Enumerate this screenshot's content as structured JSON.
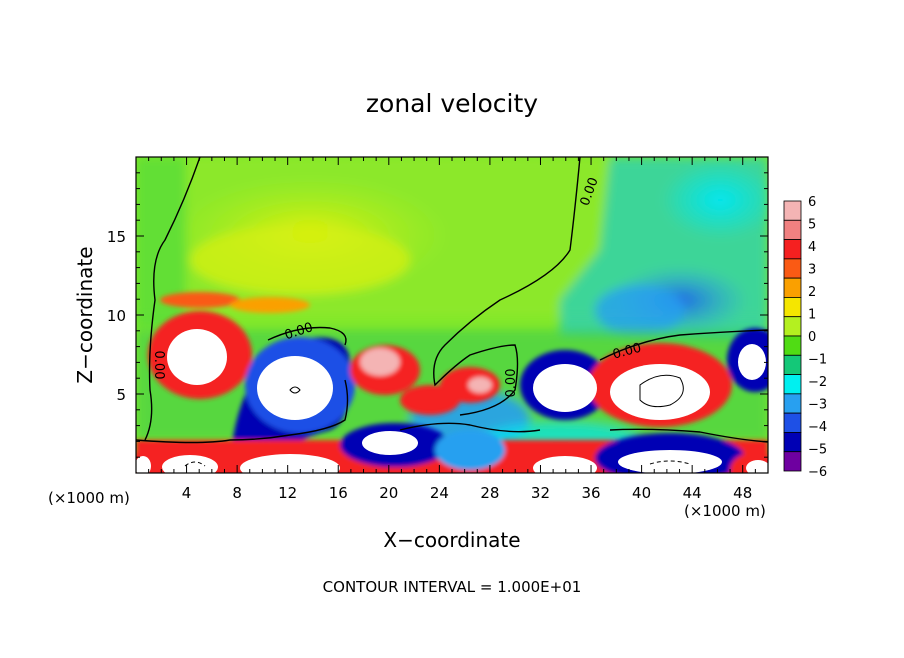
{
  "chart_data": {
    "type": "heatmap",
    "title": "zonal velocity",
    "xlabel": "X−coordinate",
    "ylabel": "Z−coordinate",
    "x_unit_left": "(×1000 m)",
    "x_unit_right": "(×1000 m)",
    "footer": "CONTOUR INTERVAL = 1.000E+01",
    "xlim": [
      0,
      50
    ],
    "ylim": [
      0,
      20
    ],
    "x_ticks": [
      4,
      8,
      12,
      16,
      20,
      24,
      28,
      32,
      36,
      40,
      44,
      48
    ],
    "y_ticks": [
      5,
      10,
      15
    ],
    "colorbar": {
      "levels": [
        6,
        5,
        4,
        3,
        2,
        1,
        0,
        -1,
        -2,
        -3,
        -4,
        -5,
        -6
      ],
      "colors": [
        "#f4b4b4",
        "#f08080",
        "#f52020",
        "#fa5a14",
        "#faa000",
        "#f5e600",
        "#b4f020",
        "#50dc14",
        "#14c878",
        "#00f0f0",
        "#28a0f0",
        "#1e50e6",
        "#0000b4",
        "#6e00a0"
      ]
    },
    "contour_labels": [
      "0.00",
      "0.00",
      "0.00",
      "0.00",
      "0.00"
    ],
    "colors": {
      "frame": "#000000",
      "background": "#ffffff"
    }
  }
}
